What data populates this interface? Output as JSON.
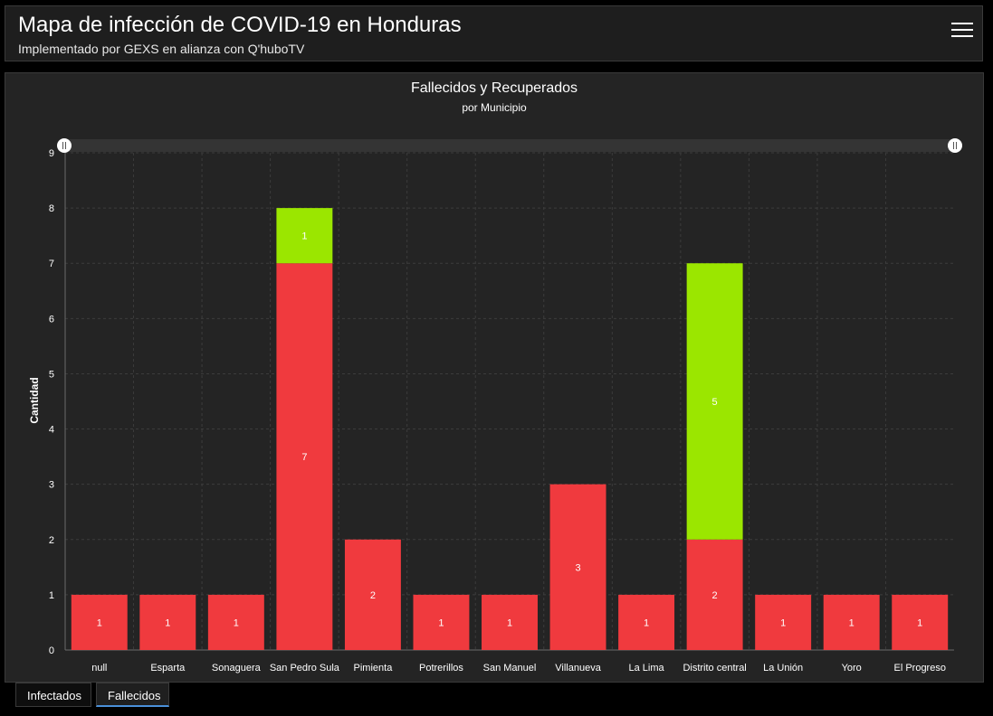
{
  "header": {
    "title": "Mapa de infección de COVID-19 en Honduras",
    "subtitle": "Implementado por GEXS en alianza con Q'huboTV",
    "menu_icon": "hamburger-menu-icon"
  },
  "tabs": [
    {
      "label": "Infectados",
      "active": false
    },
    {
      "label": "Fallecidos",
      "active": true
    }
  ],
  "chart_data": {
    "type": "bar",
    "stacked": true,
    "title": "Fallecidos y Recuperados",
    "subtitle": "por Municipio",
    "xlabel": "",
    "ylabel": "Cantidad",
    "ylim": [
      0,
      9
    ],
    "yticks": [
      0,
      1,
      2,
      3,
      4,
      5,
      6,
      7,
      8,
      9
    ],
    "grid": true,
    "categories": [
      "null",
      "Esparta",
      "Sonaguera",
      "San Pedro Sula",
      "Pimienta",
      "Potrerillos",
      "San Manuel",
      "Villanueva",
      "La Lima",
      "Distrito central",
      "La Unión",
      "Yoro",
      "El Progreso"
    ],
    "series": [
      {
        "values": [
          1,
          1,
          1,
          7,
          2,
          1,
          1,
          3,
          1,
          2,
          1,
          1,
          1
        ],
        "color": "#f03a3e"
      },
      {
        "values": [
          0,
          0,
          0,
          1,
          0,
          0,
          0,
          0,
          0,
          5,
          0,
          0,
          0
        ],
        "color": "#9be600"
      }
    ]
  }
}
